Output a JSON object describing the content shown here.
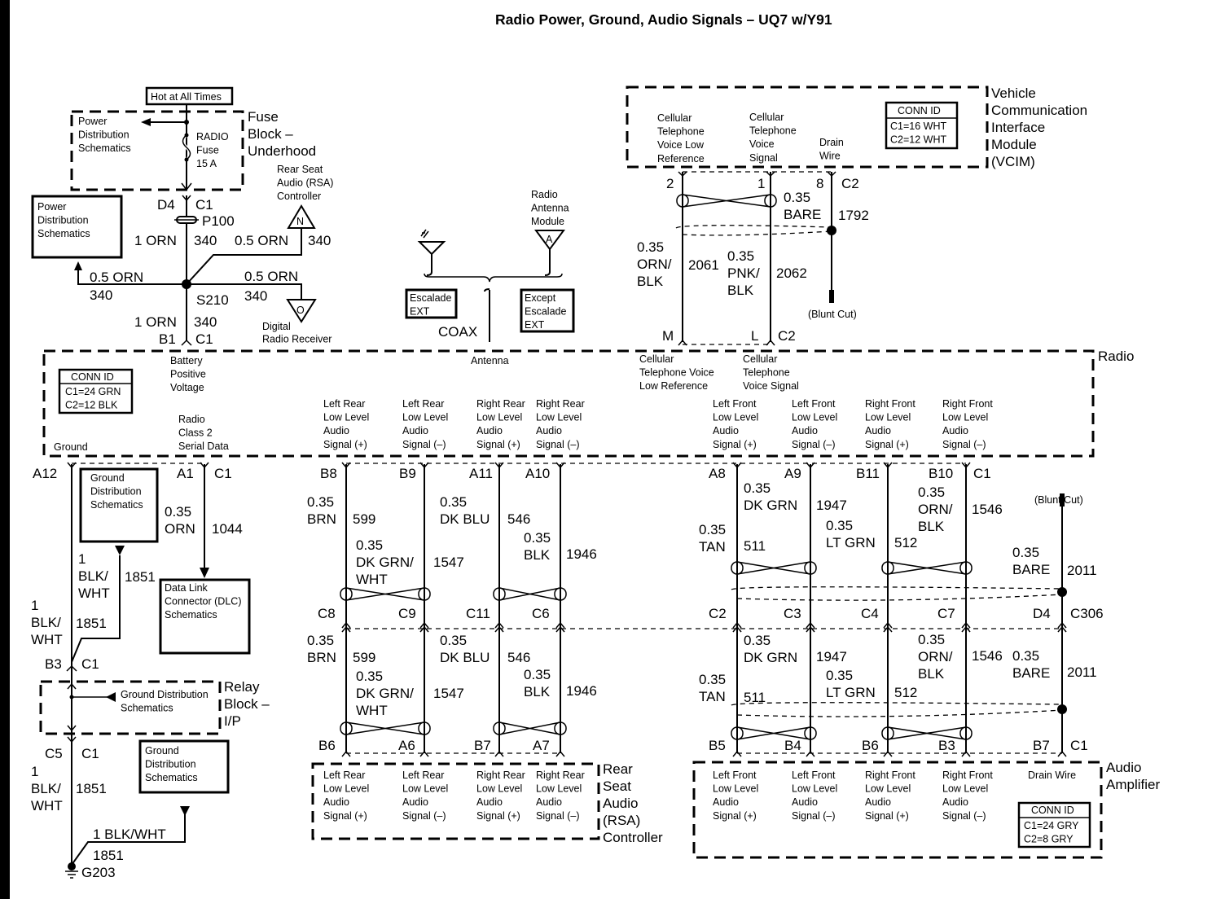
{
  "title": "Radio Power, Ground, Audio Signals – UQ7 w/Y91",
  "fuse_block": {
    "label": [
      "Fuse",
      "Block –",
      "Underhood"
    ],
    "hot_at_all_times": "Hot at All Times",
    "power_dist_ref": [
      "Power",
      "Distribution",
      "Schematics"
    ],
    "fuse": [
      "RADIO",
      "Fuse",
      "15 A"
    ],
    "pin": "D4",
    "connector": "C1",
    "splice_pack": "P100"
  },
  "power_dist_box": [
    "Power",
    "Distribution",
    "Schematics"
  ],
  "circuit_340": {
    "to_fuse": {
      "wire": "1 ORN",
      "circuit": "340"
    },
    "to_rsa": {
      "wire": "0.5 ORN",
      "circuit": "340"
    },
    "to_power_dist": {
      "wire": "0.5 ORN",
      "circuit": "340"
    },
    "to_drr": {
      "wire": "0.5 ORN",
      "circuit": "340"
    },
    "to_radio": {
      "wire": "1 ORN",
      "circuit": "340"
    },
    "splice": "S210",
    "radio_pin": "B1",
    "radio_connector": "C1"
  },
  "rsa_ref": {
    "label": [
      "Rear Seat",
      "Audio (RSA)",
      "Controller"
    ],
    "symbol": "N"
  },
  "drr_ref": {
    "label": [
      "Digital",
      "Radio Receiver"
    ],
    "symbol": "O"
  },
  "antenna": {
    "module": [
      "Radio",
      "Antenna",
      "Module"
    ],
    "symbol": "A",
    "escalade_note": [
      "Escalade",
      "EXT"
    ],
    "except_note": [
      "Except",
      "Escalade",
      "EXT"
    ],
    "coax": "COAX"
  },
  "vcim": {
    "label": [
      "Vehicle",
      "Communication",
      "Interface",
      "Module",
      "(VCIM)"
    ],
    "conn_id": {
      "header": "CONN ID",
      "lines": [
        "C1=16 WHT",
        "C2=12 WHT"
      ]
    },
    "terminals": [
      [
        "Cellular",
        "Telephone",
        "Voice Low",
        "Reference"
      ],
      [
        "Cellular",
        "Telephone",
        "Voice",
        "Signal"
      ],
      [
        "Drain",
        "Wire"
      ]
    ],
    "pins": [
      "2",
      "1",
      "8"
    ],
    "connector": "C2",
    "drain": {
      "gauge": [
        "0.35",
        "BARE"
      ],
      "circuit": "1792",
      "end": "(Blunt Cut)"
    },
    "wires": [
      {
        "gauge": [
          "0.35",
          "ORN/",
          "BLK"
        ],
        "circuit": "2061",
        "radio_pin": "M"
      },
      {
        "gauge": [
          "0.35",
          "PNK/",
          "BLK"
        ],
        "circuit": "2062",
        "radio_pin": "L"
      }
    ],
    "radio_connector": "C2"
  },
  "radio": {
    "label": "Radio",
    "conn_id": {
      "header": "CONN ID",
      "lines": [
        "C1=24 GRN",
        "C2=12 BLK"
      ]
    },
    "ground": "Ground",
    "battery": [
      "Battery",
      "Positive",
      "Voltage"
    ],
    "serial_data": [
      "Radio",
      "Class 2",
      "Serial Data"
    ],
    "antenna": "Antenna",
    "cell_low_ref": [
      "Cellular",
      "Telephone Voice",
      "Low Reference"
    ],
    "cell_signal": [
      "Cellular",
      "Telephone",
      "Voice Signal"
    ],
    "audio": [
      [
        "Left Rear",
        "Low Level",
        "Audio",
        "Signal (+)"
      ],
      [
        "Left Rear",
        "Low Level",
        "Audio",
        "Signal (–)"
      ],
      [
        "Right Rear",
        "Low Level",
        "Audio",
        "Signal (+)"
      ],
      [
        "Right Rear",
        "Low Level",
        "Audio",
        "Signal (–)"
      ],
      [
        "Left Front",
        "Low Level",
        "Audio",
        "Signal (+)"
      ],
      [
        "Left Front",
        "Low Level",
        "Audio",
        "Signal (–)"
      ],
      [
        "Right Front",
        "Low Level",
        "Audio",
        "Signal (+)"
      ],
      [
        "Right Front",
        "Low Level",
        "Audio",
        "Signal (–)"
      ]
    ]
  },
  "ground_circuit": {
    "radio_pin": "A12",
    "radio_connector": "C1",
    "gds_box": [
      "Ground",
      "Distribution",
      "Schematics"
    ],
    "seg1": {
      "gauge": [
        "1",
        "BLK/",
        "WHT"
      ],
      "circuit": "1851"
    },
    "seg2": {
      "gauge": [
        "1",
        "BLK/",
        "WHT"
      ],
      "circuit": "1851"
    },
    "relay_pin_in": "B3",
    "relay_conn_in": "C1",
    "relay_block": [
      "Relay",
      "Block –",
      "I/P"
    ],
    "relay_gds": [
      "Ground Distribution",
      "Schematics"
    ],
    "relay_pin_out": "C5",
    "relay_conn_out": "C1",
    "seg3": {
      "gauge": [
        "1",
        "BLK/",
        "WHT"
      ],
      "circuit": "1851"
    },
    "gds_box2": [
      "Ground",
      "Distribution",
      "Schematics"
    ],
    "seg4": {
      "wire": "1 BLK/WHT",
      "circuit": "1851"
    },
    "ground": "G203"
  },
  "serial_data": {
    "radio_pin": "A1",
    "connector": "C1",
    "gauge": [
      "0.35",
      "ORN"
    ],
    "circuit": "1044",
    "dlc": [
      "Data Link",
      "Connector (DLC)",
      "Schematics"
    ]
  },
  "rear_wires": [
    {
      "radio_pin": "B8",
      "upper": {
        "gauge": [
          "0.35",
          "BRN"
        ],
        "circuit": "599"
      },
      "inline_pin": "C8",
      "lower": {
        "gauge": [
          "0.35",
          "BRN"
        ],
        "circuit": "599"
      },
      "end_pin": "B6"
    },
    {
      "radio_pin": "B9",
      "upper": {
        "gauge": [
          "0.35",
          "DK GRN/",
          "WHT"
        ],
        "circuit": "1547"
      },
      "inline_pin": "C9",
      "lower": {
        "gauge": [
          "0.35",
          "DK GRN/",
          "WHT"
        ],
        "circuit": "1547"
      },
      "end_pin": "A6"
    },
    {
      "radio_pin": "A11",
      "upper": {
        "gauge": [
          "0.35",
          "DK BLU"
        ],
        "circuit": "546"
      },
      "inline_pin": "C11",
      "lower": {
        "gauge": [
          "0.35",
          "DK BLU"
        ],
        "circuit": "546"
      },
      "end_pin": "B7"
    },
    {
      "radio_pin": "A10",
      "upper": {
        "gauge": [
          "0.35",
          "BLK"
        ],
        "circuit": "1946"
      },
      "inline_pin": "C6",
      "lower": {
        "gauge": [
          "0.35",
          "BLK"
        ],
        "circuit": "1946"
      },
      "end_pin": "A7"
    }
  ],
  "front_wires": [
    {
      "radio_pin": "A8",
      "upper": {
        "gauge": [
          "0.35",
          "TAN"
        ],
        "circuit": "511"
      },
      "inline_pin": "C2",
      "lower": {
        "gauge": [
          "0.35",
          "TAN"
        ],
        "circuit": "511"
      },
      "end_pin": "B5"
    },
    {
      "radio_pin": "A9",
      "upper": {
        "gauge": [
          "0.35",
          "DK GRN"
        ],
        "circuit": "1947"
      },
      "inline_pin": "C3",
      "lower": {
        "gauge": [
          "0.35",
          "DK GRN"
        ],
        "circuit": "1947"
      },
      "end_pin": "B4"
    },
    {
      "radio_pin": "B11",
      "upper": {
        "gauge": [
          "0.35",
          "LT GRN"
        ],
        "circuit": "512"
      },
      "inline_pin": "C4",
      "lower": {
        "gauge": [
          "0.35",
          "LT GRN"
        ],
        "circuit": "512"
      },
      "end_pin": "B6"
    },
    {
      "radio_pin": "B10",
      "upper": {
        "gauge": [
          "0.35",
          "ORN/",
          "BLK"
        ],
        "circuit": "1546"
      },
      "inline_pin": "C7",
      "lower": {
        "gauge": [
          "0.35",
          "ORN/",
          "BLK"
        ],
        "circuit": "1546"
      },
      "end_pin": "B3"
    },
    {
      "radio_pin": "(Blunt Cut)",
      "upper": {
        "gauge": [
          "0.35",
          "BARE"
        ],
        "circuit": "2011"
      },
      "inline_pin": "D4",
      "lower": {
        "gauge": [
          "0.35",
          "BARE"
        ],
        "circuit": "2011"
      },
      "end_pin": "B7"
    }
  ],
  "connectors": {
    "radio_c1": "C1",
    "inline": "C306",
    "amp_c1": "C1"
  },
  "rsa": {
    "label": [
      "Rear",
      "Seat",
      "Audio",
      "(RSA)",
      "Controller"
    ],
    "audio": [
      [
        "Left Rear",
        "Low Level",
        "Audio",
        "Signal (+)"
      ],
      [
        "Left Rear",
        "Low Level",
        "Audio",
        "Signal (–)"
      ],
      [
        "Right Rear",
        "Low Level",
        "Audio",
        "Signal (+)"
      ],
      [
        "Right Rear",
        "Low Level",
        "Audio",
        "Signal (–)"
      ]
    ]
  },
  "amp": {
    "label": [
      "Audio",
      "Amplifier"
    ],
    "audio": [
      [
        "Left Front",
        "Low Level",
        "Audio",
        "Signal (+)"
      ],
      [
        "Left Front",
        "Low Level",
        "Audio",
        "Signal (–)"
      ],
      [
        "Right Front",
        "Low Level",
        "Audio",
        "Signal (+)"
      ],
      [
        "Right Front",
        "Low Level",
        "Audio",
        "Signal (–)"
      ]
    ],
    "drain": "Drain Wire",
    "conn_id": {
      "header": "CONN ID",
      "lines": [
        "C1=24 GRY",
        "C2=8 GRY"
      ]
    }
  }
}
